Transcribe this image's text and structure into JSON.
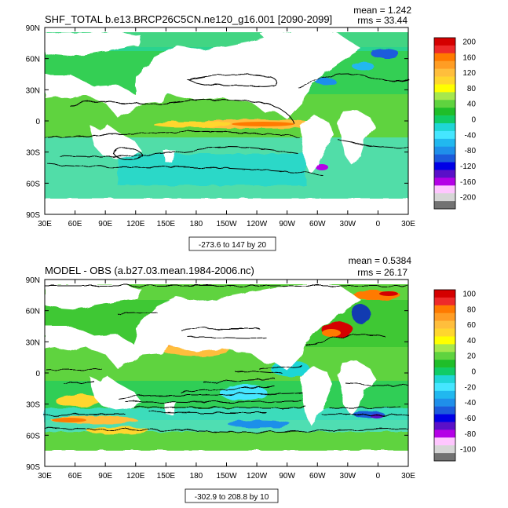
{
  "chart_data": [
    {
      "type": "heatmap",
      "title": "SHF_TOTAL b.e13.BRCP26C5CN.ne120_g16.001 [2090-2099]",
      "stats": {
        "mean": "mean = 1.242",
        "rms": "rms = 33.44"
      },
      "range_note": "-273.6 to 147 by 20",
      "x_ticks": [
        "30E",
        "60E",
        "90E",
        "120E",
        "150E",
        "180",
        "150W",
        "120W",
        "90W",
        "60W",
        "30W",
        "0",
        "30E"
      ],
      "y_ticks": [
        "90N",
        "60N",
        "30N",
        "0",
        "30S",
        "60S",
        "90S"
      ],
      "xlim": [
        30,
        390
      ],
      "ylim": [
        -90,
        90
      ],
      "colorbar": {
        "labels": [
          "200",
          "160",
          "120",
          "80",
          "40",
          "0",
          "-40",
          "-80",
          "-120",
          "-160",
          "-200"
        ],
        "colors": [
          "#d50000",
          "#ee2a2a",
          "#ff7a00",
          "#ff9d24",
          "#ffbe3c",
          "#ffd62e",
          "#ffff00",
          "#a6e84d",
          "#5fd33f",
          "#1fbe29",
          "#10cc66",
          "#1fd6d6",
          "#45e6ff",
          "#21b8ef",
          "#1f8fea",
          "#1c5bdc",
          "#0000e6",
          "#5a10c8",
          "#b400e6",
          "#ffc6ff",
          "#d6d6d6",
          "#727272"
        ]
      }
    },
    {
      "type": "heatmap",
      "title": "MODEL - OBS (a.b27.03.mean.1984-2006.nc)",
      "stats": {
        "mean": "mean = 0.5384",
        "rms": "rms = 26.17"
      },
      "range_note": "-302.9 to 208.8 by 10",
      "x_ticks": [
        "30E",
        "60E",
        "90E",
        "120E",
        "150E",
        "180",
        "150W",
        "120W",
        "90W",
        "60W",
        "30W",
        "0",
        "30E"
      ],
      "y_ticks": [
        "90N",
        "60N",
        "30N",
        "0",
        "30S",
        "60S",
        "90S"
      ],
      "xlim": [
        30,
        390
      ],
      "ylim": [
        -90,
        90
      ],
      "colorbar": {
        "labels": [
          "100",
          "80",
          "60",
          "40",
          "20",
          "0",
          "-20",
          "-40",
          "-60",
          "-80",
          "-100"
        ],
        "colors": [
          "#d50000",
          "#ee2a2a",
          "#ff7a00",
          "#ff9d24",
          "#ffbe3c",
          "#ffd62e",
          "#ffff00",
          "#a6e84d",
          "#5fd33f",
          "#1fbe29",
          "#10cc66",
          "#1fd6d6",
          "#45e6ff",
          "#21b8ef",
          "#1f8fea",
          "#1c5bdc",
          "#0000e6",
          "#5a10c8",
          "#b400e6",
          "#ffc6ff",
          "#d6d6d6",
          "#727272"
        ]
      }
    }
  ]
}
